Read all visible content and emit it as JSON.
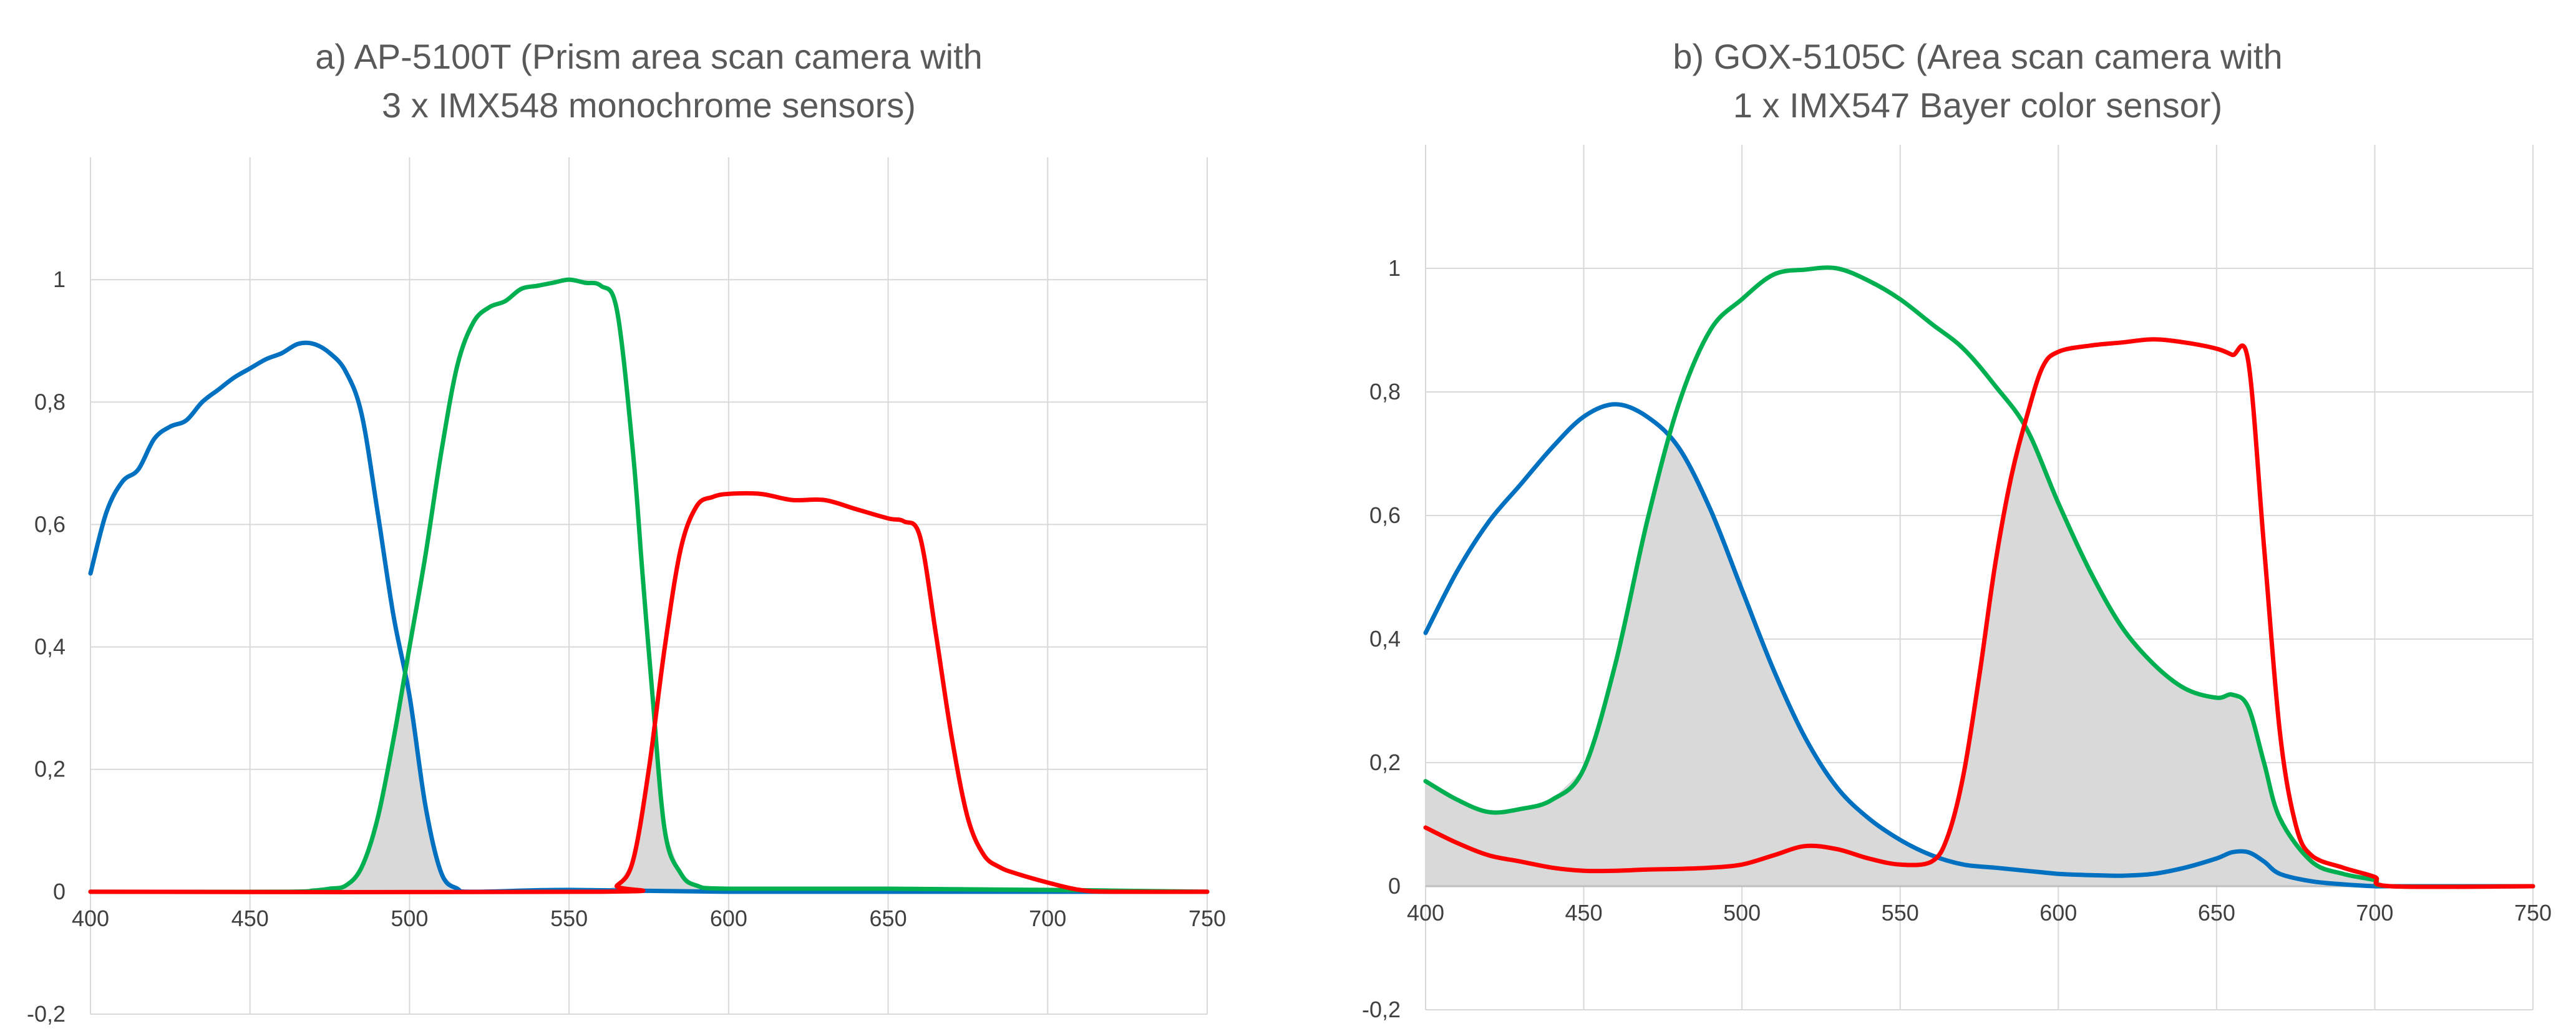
{
  "chart_data": [
    {
      "type": "line",
      "id": "a",
      "title_lines": [
        "a) AP-5100T  (Prism area scan camera with",
        "3 x IMX548 monochrome sensors)"
      ],
      "xlabel": "",
      "ylabel": "",
      "xlim": [
        400,
        750
      ],
      "ylim": [
        -0.2,
        1.2
      ],
      "xticks": [
        400,
        450,
        500,
        550,
        600,
        650,
        700,
        750
      ],
      "yticks": [
        -0.2,
        0,
        0.2,
        0.4,
        0.6,
        0.8,
        1
      ],
      "ytick_labels": [
        "-0,2",
        "0",
        "0,2",
        "0,4",
        "0,6",
        "0,8",
        "1"
      ],
      "grid": true,
      "legend": "none",
      "overlap_fill": "#d9d9d9",
      "series": [
        {
          "name": "Blue",
          "color": "#0070C0",
          "x": [
            400,
            405,
            410,
            415,
            420,
            425,
            430,
            435,
            440,
            445,
            450,
            455,
            460,
            465,
            470,
            475,
            480,
            485,
            490,
            495,
            500,
            505,
            510,
            515,
            520,
            550,
            600,
            650,
            700,
            750
          ],
          "y": [
            0.52,
            0.62,
            0.67,
            0.69,
            0.74,
            0.76,
            0.77,
            0.8,
            0.82,
            0.84,
            0.855,
            0.87,
            0.88,
            0.895,
            0.895,
            0.88,
            0.85,
            0.78,
            0.62,
            0.45,
            0.32,
            0.14,
            0.03,
            0.005,
            0,
            0.003,
            0,
            0,
            0,
            0
          ]
        },
        {
          "name": "Green",
          "color": "#00B050",
          "x": [
            400,
            460,
            470,
            475,
            480,
            485,
            490,
            495,
            500,
            505,
            510,
            515,
            520,
            525,
            530,
            535,
            540,
            545,
            550,
            555,
            560,
            565,
            570,
            573,
            576,
            580,
            585,
            590,
            600,
            650,
            700,
            750
          ],
          "y": [
            0,
            0,
            0.002,
            0.005,
            0.01,
            0.04,
            0.12,
            0.25,
            0.4,
            0.55,
            0.72,
            0.86,
            0.93,
            0.955,
            0.965,
            0.985,
            0.99,
            0.995,
            1.0,
            0.995,
            0.99,
            0.95,
            0.72,
            0.52,
            0.33,
            0.1,
            0.03,
            0.01,
            0.005,
            0.005,
            0.003,
            0
          ]
        },
        {
          "name": "Red",
          "color": "#FF0000",
          "x": [
            400,
            560,
            565,
            570,
            575,
            580,
            585,
            590,
            595,
            600,
            610,
            620,
            630,
            640,
            650,
            655,
            660,
            665,
            670,
            675,
            680,
            685,
            690,
            700,
            710,
            720,
            750
          ],
          "y": [
            0,
            0,
            0.01,
            0.05,
            0.2,
            0.4,
            0.56,
            0.63,
            0.645,
            0.65,
            0.65,
            0.64,
            0.64,
            0.625,
            0.61,
            0.605,
            0.58,
            0.42,
            0.25,
            0.12,
            0.06,
            0.04,
            0.03,
            0.015,
            0.003,
            0,
            0
          ]
        }
      ]
    },
    {
      "type": "line",
      "id": "b",
      "title_lines": [
        "b) GOX-5105C  (Area scan camera with",
        "1 x IMX547 Bayer color sensor)"
      ],
      "xlabel": "",
      "ylabel": "",
      "xlim": [
        400,
        750
      ],
      "ylim": [
        -0.2,
        1.2
      ],
      "xticks": [
        400,
        450,
        500,
        550,
        600,
        650,
        700,
        750
      ],
      "yticks": [
        -0.2,
        0,
        0.2,
        0.4,
        0.6,
        0.8,
        1
      ],
      "ytick_labels": [
        "-0,2",
        "0",
        "0,2",
        "0,4",
        "0,6",
        "0,8",
        "1"
      ],
      "grid": true,
      "legend": "none",
      "overlap_fill": "#d9d9d9",
      "series": [
        {
          "name": "Blue",
          "color": "#0070C0",
          "x": [
            400,
            410,
            420,
            430,
            440,
            450,
            460,
            470,
            480,
            490,
            500,
            510,
            520,
            530,
            540,
            550,
            560,
            570,
            580,
            590,
            600,
            610,
            620,
            630,
            640,
            650,
            655,
            660,
            665,
            670,
            680,
            690,
            700,
            705,
            750
          ],
          "y": [
            0.41,
            0.51,
            0.59,
            0.65,
            0.71,
            0.76,
            0.78,
            0.76,
            0.71,
            0.61,
            0.48,
            0.35,
            0.24,
            0.16,
            0.11,
            0.075,
            0.05,
            0.035,
            0.03,
            0.025,
            0.02,
            0.018,
            0.017,
            0.02,
            0.03,
            0.045,
            0.055,
            0.055,
            0.04,
            0.02,
            0.008,
            0.003,
            0,
            0,
            0
          ]
        },
        {
          "name": "Green",
          "color": "#00B050",
          "x": [
            400,
            410,
            420,
            430,
            440,
            450,
            460,
            470,
            480,
            490,
            500,
            510,
            520,
            530,
            540,
            550,
            560,
            570,
            580,
            590,
            600,
            610,
            620,
            630,
            640,
            650,
            655,
            660,
            665,
            670,
            680,
            690,
            700,
            705,
            750
          ],
          "y": [
            0.17,
            0.14,
            0.12,
            0.125,
            0.14,
            0.19,
            0.36,
            0.59,
            0.78,
            0.9,
            0.95,
            0.99,
            0.998,
            1.0,
            0.98,
            0.95,
            0.91,
            0.87,
            0.81,
            0.74,
            0.62,
            0.51,
            0.42,
            0.36,
            0.32,
            0.305,
            0.31,
            0.29,
            0.2,
            0.11,
            0.04,
            0.02,
            0.01,
            0,
            0
          ]
        },
        {
          "name": "Red",
          "color": "#FF0000",
          "x": [
            400,
            410,
            420,
            430,
            440,
            450,
            460,
            470,
            480,
            490,
            500,
            510,
            520,
            530,
            540,
            550,
            560,
            565,
            570,
            575,
            580,
            585,
            590,
            595,
            600,
            610,
            620,
            630,
            640,
            650,
            655,
            660,
            665,
            670,
            675,
            680,
            690,
            700,
            705,
            750
          ],
          "y": [
            0.095,
            0.07,
            0.05,
            0.04,
            0.03,
            0.025,
            0.025,
            0.027,
            0.028,
            0.03,
            0.035,
            0.05,
            0.065,
            0.06,
            0.045,
            0.035,
            0.04,
            0.08,
            0.18,
            0.34,
            0.52,
            0.66,
            0.76,
            0.84,
            0.865,
            0.875,
            0.88,
            0.885,
            0.88,
            0.87,
            0.86,
            0.85,
            0.55,
            0.25,
            0.1,
            0.05,
            0.03,
            0.015,
            0,
            0
          ]
        }
      ]
    }
  ]
}
